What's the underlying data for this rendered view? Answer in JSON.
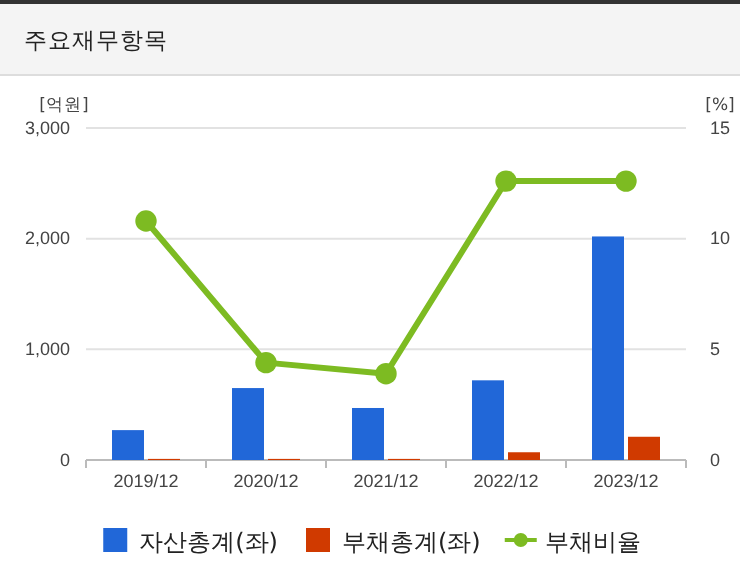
{
  "chart_data": {
    "type": "bar",
    "title": "주요재무항목",
    "ylabel": "[억원]",
    "y2label": "[%]",
    "categories": [
      "2019/12",
      "2020/12",
      "2021/12",
      "2022/12",
      "2023/12"
    ],
    "series": [
      {
        "name": "자산총계(좌)",
        "color": "#2167d8",
        "values": [
          270,
          650,
          470,
          720,
          2020
        ]
      },
      {
        "name": "부채총계(좌)",
        "color": "#d03a00",
        "values": [
          10,
          10,
          10,
          70,
          210
        ]
      },
      {
        "name": "부채비율",
        "type": "line",
        "axis": "y2",
        "color": "#7dbb22",
        "values": [
          10.8,
          4.4,
          3.9,
          12.6,
          12.6
        ]
      }
    ],
    "ylim": [
      0,
      3000
    ],
    "yticks": [
      {
        "value": 0,
        "label": "0"
      },
      {
        "value": 1000,
        "label": "1,000"
      },
      {
        "value": 2000,
        "label": "2,000"
      },
      {
        "value": 3000,
        "label": "3,000"
      }
    ],
    "y2lim": [
      0,
      15
    ],
    "y2ticks": [
      0,
      5,
      10,
      15
    ],
    "grid": "y",
    "legend": "bottom",
    "marker": "circle"
  }
}
